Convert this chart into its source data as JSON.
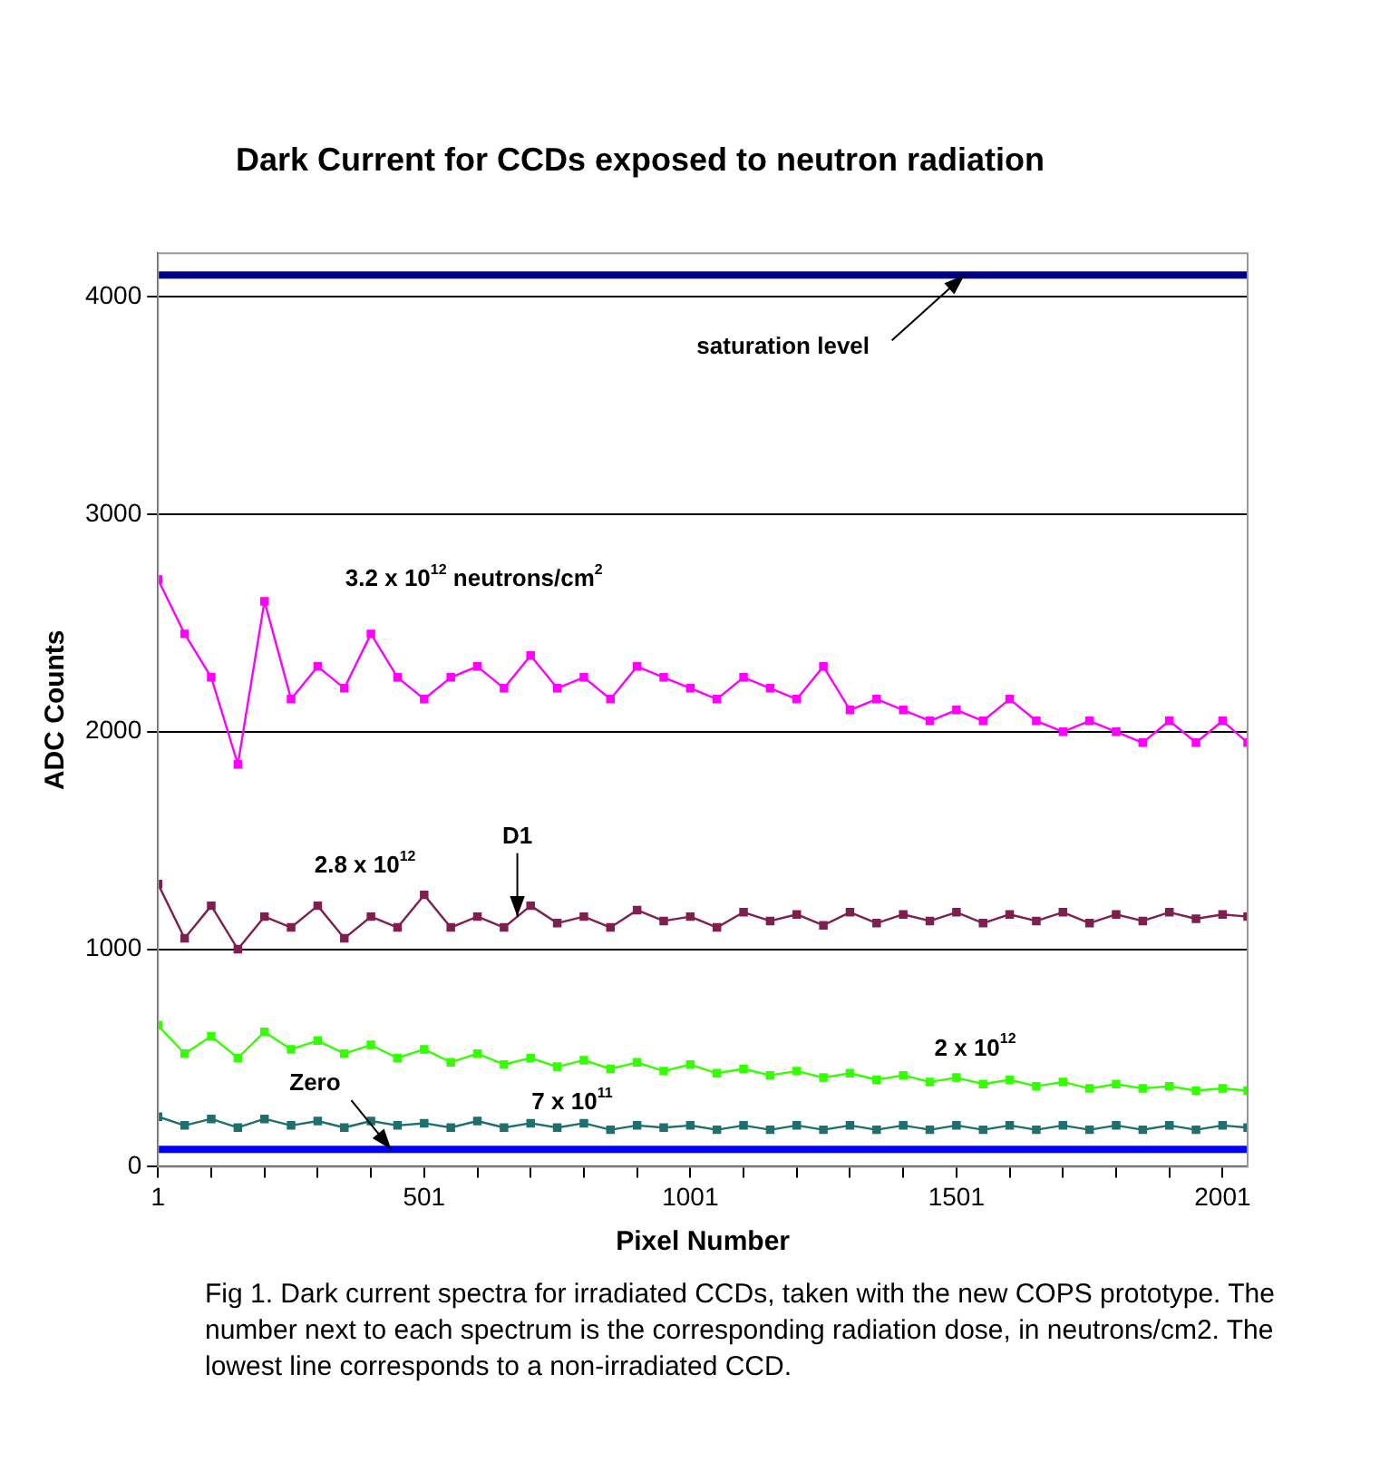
{
  "chart_data": {
    "type": "line",
    "title": "Dark Current for CCDs exposed to neutron radiation",
    "xlabel": "Pixel Number",
    "ylabel": "ADC Counts",
    "x": [
      1,
      51,
      101,
      151,
      201,
      251,
      301,
      351,
      401,
      451,
      501,
      551,
      601,
      651,
      701,
      751,
      801,
      851,
      901,
      951,
      1001,
      1051,
      1101,
      1151,
      1201,
      1251,
      1301,
      1351,
      1401,
      1451,
      1501,
      1551,
      1601,
      1651,
      1701,
      1751,
      1801,
      1851,
      1901,
      1951,
      2001,
      2048
    ],
    "series": [
      {
        "color": "#000080",
        "marker": "none",
        "values": [
          4100,
          4100,
          4100,
          4100,
          4100,
          4100,
          4100,
          4100,
          4100,
          4100,
          4100,
          4100,
          4100,
          4100,
          4100,
          4100,
          4100,
          4100,
          4100,
          4100,
          4100,
          4100,
          4100,
          4100,
          4100,
          4100,
          4100,
          4100,
          4100,
          4100,
          4100,
          4100,
          4100,
          4100,
          4100,
          4100,
          4100,
          4100,
          4100,
          4100,
          4100,
          4100
        ]
      },
      {
        "color": "#ff00ff",
        "values": [
          2700,
          2450,
          2250,
          1850,
          2600,
          2150,
          2300,
          2200,
          2450,
          2250,
          2150,
          2250,
          2300,
          2200,
          2350,
          2200,
          2250,
          2150,
          2300,
          2250,
          2200,
          2150,
          2250,
          2200,
          2150,
          2300,
          2100,
          2150,
          2100,
          2050,
          2100,
          2050,
          2150,
          2050,
          2000,
          2050,
          2000,
          1950,
          2050,
          1950,
          2050,
          1950
        ]
      },
      {
        "color": "#7f1f4f",
        "values": [
          1300,
          1050,
          1200,
          1000,
          1150,
          1100,
          1200,
          1050,
          1150,
          1100,
          1250,
          1100,
          1150,
          1100,
          1200,
          1120,
          1150,
          1100,
          1180,
          1130,
          1150,
          1100,
          1170,
          1130,
          1160,
          1110,
          1170,
          1120,
          1160,
          1130,
          1170,
          1120,
          1160,
          1130,
          1170,
          1120,
          1160,
          1130,
          1170,
          1140,
          1160,
          1150
        ]
      },
      {
        "color": "#33ff00",
        "values": [
          650,
          520,
          600,
          500,
          620,
          540,
          580,
          520,
          560,
          500,
          540,
          480,
          520,
          470,
          500,
          460,
          490,
          450,
          480,
          440,
          470,
          430,
          450,
          420,
          440,
          410,
          430,
          400,
          420,
          390,
          410,
          380,
          400,
          370,
          390,
          360,
          380,
          360,
          370,
          350,
          360,
          350
        ]
      },
      {
        "color": "#1f6f6f",
        "values": [
          230,
          190,
          220,
          180,
          220,
          190,
          210,
          180,
          210,
          190,
          200,
          180,
          210,
          180,
          200,
          180,
          200,
          170,
          190,
          180,
          190,
          170,
          190,
          170,
          190,
          170,
          190,
          170,
          190,
          170,
          190,
          170,
          190,
          170,
          190,
          170,
          190,
          170,
          190,
          170,
          190,
          180
        ]
      },
      {
        "color": "#0000ff",
        "marker": "none",
        "values": [
          80,
          80,
          80,
          80,
          80,
          80,
          80,
          80,
          80,
          80,
          80,
          80,
          80,
          80,
          80,
          80,
          80,
          80,
          80,
          80,
          80,
          80,
          80,
          80,
          80,
          80,
          80,
          80,
          80,
          80,
          80,
          80,
          80,
          80,
          80,
          80,
          80,
          80,
          80,
          80,
          80,
          80
        ]
      }
    ],
    "xlim": [
      1,
      2048
    ],
    "xticks": [
      1,
      {
        "value": 101,
        "label": null
      },
      {
        "value": 201,
        "label": null
      },
      {
        "value": 301,
        "label": null
      },
      {
        "value": 401,
        "label": null
      },
      501,
      {
        "value": 601,
        "label": null
      },
      {
        "value": 701,
        "label": null
      },
      {
        "value": 801,
        "label": null
      },
      {
        "value": 901,
        "label": null
      },
      1001,
      {
        "value": 1101,
        "label": null
      },
      {
        "value": 1201,
        "label": null
      },
      {
        "value": 1301,
        "label": null
      },
      {
        "value": 1401,
        "label": null
      },
      1501,
      {
        "value": 1601,
        "label": null
      },
      {
        "value": 1701,
        "label": null
      },
      {
        "value": 1801,
        "label": null
      },
      {
        "value": 1901,
        "label": null
      },
      2001
    ],
    "ylim": [
      0,
      4200
    ],
    "yticks": [
      0,
      1000,
      2000,
      3000,
      4000
    ],
    "grid": "y",
    "marker": "square",
    "line_style": "solid",
    "annotations": [
      {
        "text": "saturation level",
        "x": 1516,
        "y": 4100
      },
      "3.2 x 10$^{12}$ neutrons/cm$^{2}$",
      "2.8 x 10$^{12}$",
      {
        "text": "D1",
        "x": 676,
        "y": 1150
      },
      "2 x 10$^{12}$",
      "7 x 10$^{11}$",
      {
        "text": "Zero",
        "x": 439,
        "y": 80
      },
      "Fig 1. Dark current spectra for irradiated CCDs, taken with the new COPS prototype. The number next to each spectrum is the corresponding radiation dose, in neutrons/cm2. The lowest line corresponds to a non-irradiated CCD."
    ]
  }
}
